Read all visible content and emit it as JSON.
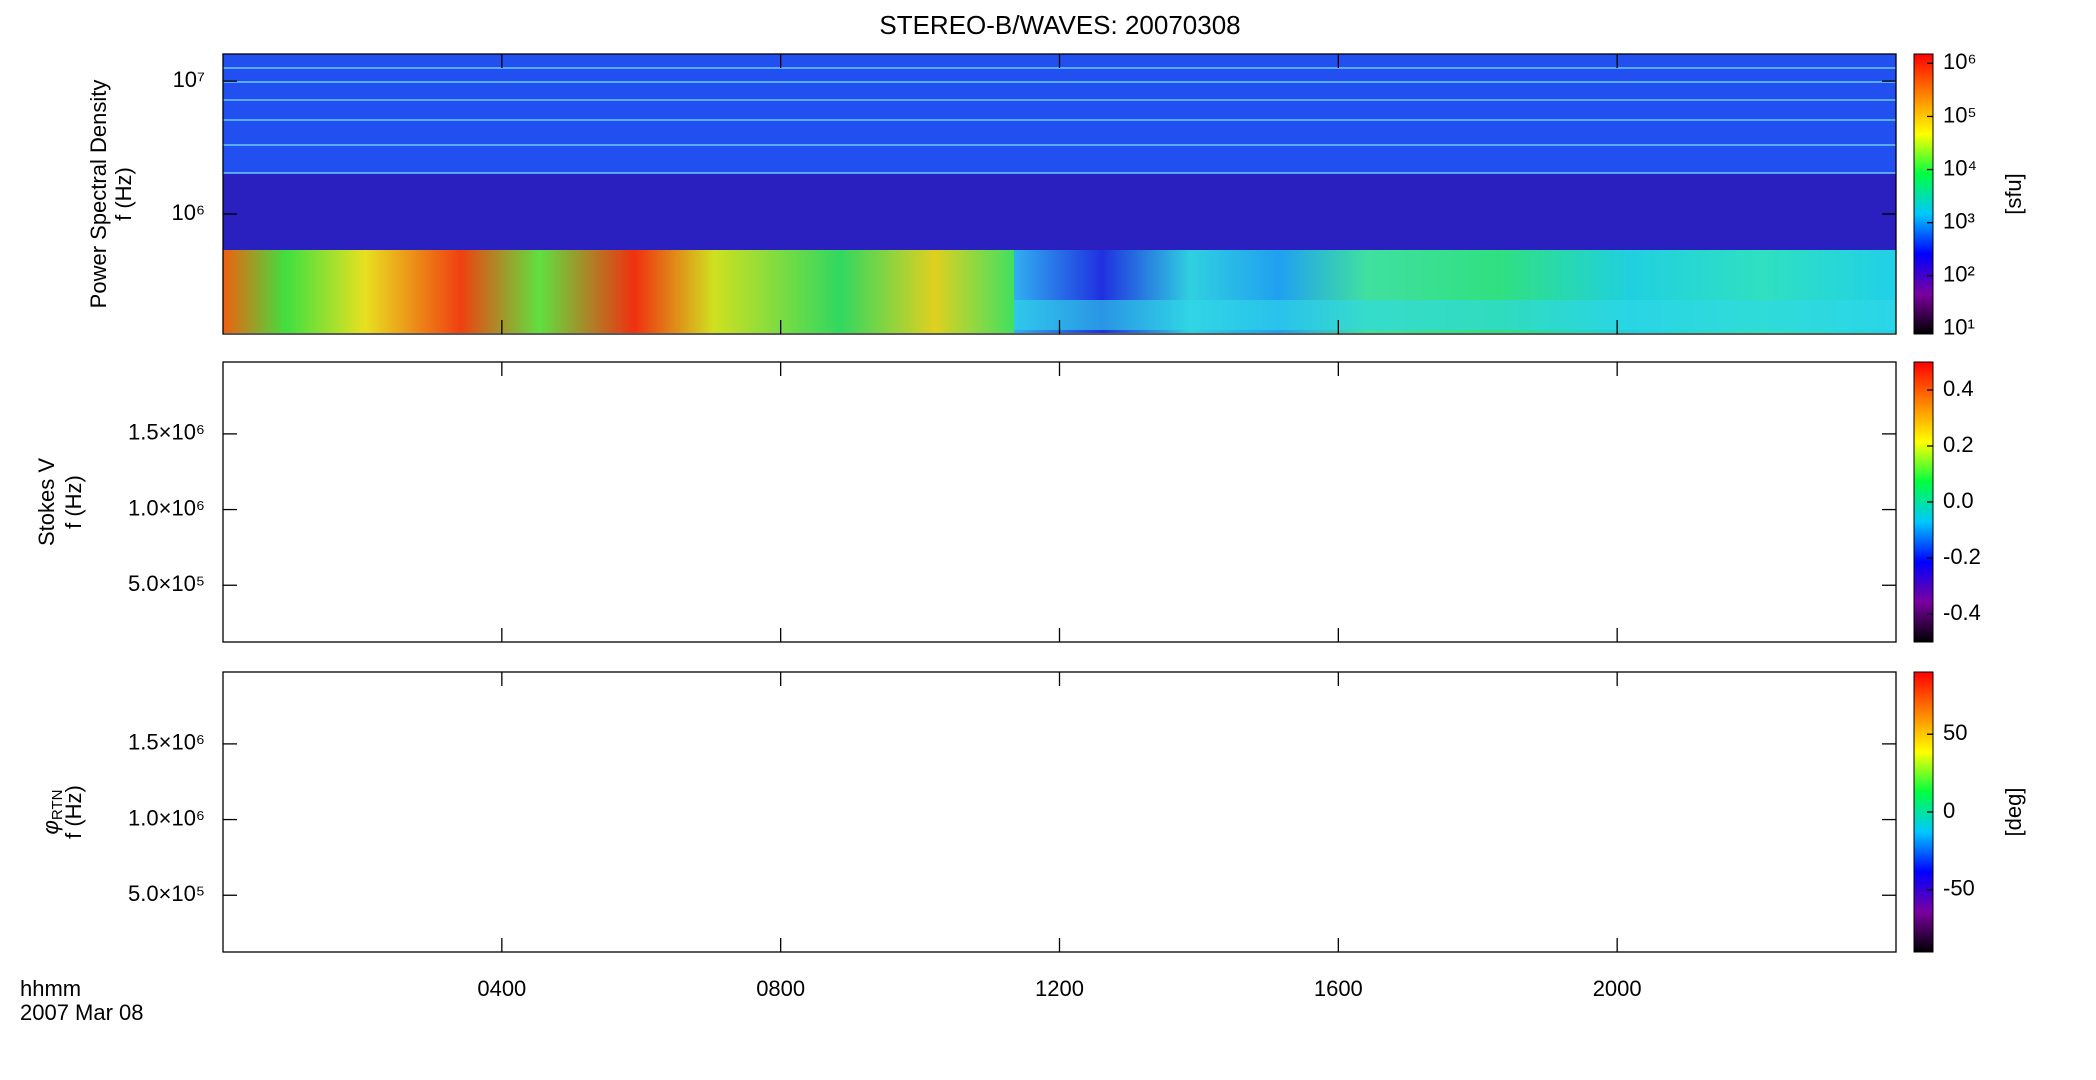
{
  "chart_data": {
    "type": "spectrogram",
    "title": "STEREO-B/WAVES: 20070308",
    "xlim": [
      0,
      24
    ],
    "xticks": [
      {
        "value": 4,
        "label": "0400"
      },
      {
        "value": 8,
        "label": "0800"
      },
      {
        "value": 12,
        "label": "1200"
      },
      {
        "value": 16,
        "label": "1600"
      },
      {
        "value": 20,
        "label": "2000"
      }
    ],
    "xlabel": "hhmm",
    "date_label": "2007 Mar 08",
    "colormap": [
      "#000000",
      "#7a00a0",
      "#0000ff",
      "#00c8ff",
      "#00ff40",
      "#ffff00",
      "#ff8000",
      "#ff0000"
    ],
    "panels": [
      {
        "ylabel": "Power Spectral Density",
        "ylabel2": "f (Hz)",
        "ylog": true,
        "ylim": [
          125000,
          16000000
        ],
        "yticks": [
          {
            "value": 1000000,
            "label": "10⁶"
          },
          {
            "value": 10000000,
            "label": "10⁷"
          }
        ],
        "clog": true,
        "clim": [
          8,
          1500000
        ],
        "cticks": [
          {
            "value": 10,
            "label": "10¹"
          },
          {
            "value": 100,
            "label": "10²"
          },
          {
            "value": 1000,
            "label": "10³"
          },
          {
            "value": 10000,
            "label": "10⁴"
          },
          {
            "value": 100000,
            "label": "10⁵"
          },
          {
            "value": 1000000,
            "label": "10⁶"
          }
        ],
        "clabel": "[sfu]"
      },
      {
        "ylabel": "Stokes V",
        "ylabel2": "f (Hz)",
        "ylog": false,
        "ylim": [
          125000,
          1975000
        ],
        "yticks": [
          {
            "value": 500000,
            "label": "5.0×10⁵"
          },
          {
            "value": 1000000,
            "label": "1.0×10⁶"
          },
          {
            "value": 1500000,
            "label": "1.5×10⁶"
          }
        ],
        "clog": false,
        "clim": [
          -0.5,
          0.5
        ],
        "cticks": [
          -0.4,
          -0.2,
          {
            "value": 0,
            "label": "0.0"
          },
          0.2,
          0.4
        ]
      },
      {
        "ylabel": "φ",
        "ylabel_sub": "RTN",
        "ylabel2": "f (Hz)",
        "ylog": false,
        "ylim": [
          125000,
          1975000
        ],
        "yticks": [
          {
            "value": 500000,
            "label": "5.0×10⁵"
          },
          {
            "value": 1000000,
            "label": "1.0×10⁶"
          },
          {
            "value": 1500000,
            "label": "1.5×10⁶"
          }
        ],
        "clog": false,
        "clim": [
          -90,
          90
        ],
        "cticks": [
          -50,
          0,
          50
        ],
        "clabel": "[deg]"
      }
    ]
  }
}
